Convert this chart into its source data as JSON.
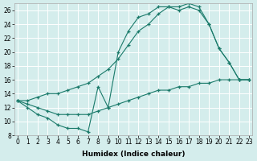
{
  "xlabel": "Humidex (Indice chaleur)",
  "bg_color": "#d4edec",
  "grid_color": "#ffffff",
  "line_color": "#1a7a6a",
  "xlim": [
    -0.3,
    23.3
  ],
  "ylim": [
    8,
    27
  ],
  "xticks": [
    0,
    1,
    2,
    3,
    4,
    5,
    6,
    7,
    8,
    9,
    10,
    11,
    12,
    13,
    14,
    15,
    16,
    17,
    18,
    19,
    20,
    21,
    22,
    23
  ],
  "yticks": [
    8,
    10,
    12,
    14,
    16,
    18,
    20,
    22,
    24,
    26
  ],
  "series": [
    {
      "x": [
        0,
        1,
        2,
        3,
        4,
        5,
        6,
        7,
        8,
        9,
        10,
        11,
        12,
        13,
        14,
        15,
        16,
        17,
        18,
        19,
        20,
        21,
        22,
        23
      ],
      "y": [
        13,
        12.5,
        12,
        11.5,
        11,
        11,
        11,
        11,
        11.5,
        12,
        12.5,
        13,
        13.5,
        14,
        14.5,
        14.5,
        15,
        15,
        15.5,
        15.5,
        16,
        16,
        16,
        16
      ]
    },
    {
      "x": [
        0,
        1,
        2,
        3,
        4,
        5,
        6,
        7,
        8,
        9,
        10,
        11,
        12,
        13,
        14,
        15,
        16,
        17,
        18,
        19,
        20,
        21,
        22,
        23
      ],
      "y": [
        13,
        12,
        11,
        10.5,
        9.5,
        9,
        9,
        8.5,
        15,
        12,
        20,
        23,
        25,
        25.5,
        26.5,
        26.5,
        26,
        26.5,
        26,
        24,
        20.5,
        18.5,
        16,
        16
      ]
    },
    {
      "x": [
        0,
        1,
        2,
        3,
        4,
        5,
        6,
        7,
        8,
        9,
        10,
        11,
        12,
        13,
        14,
        15,
        16,
        17,
        18,
        19,
        20,
        21,
        22,
        23
      ],
      "y": [
        13,
        13,
        13.5,
        14,
        14,
        14.5,
        15,
        15.5,
        16.5,
        17.5,
        19,
        21,
        23,
        24,
        25.5,
        26.5,
        26.5,
        27,
        26.5,
        24,
        20.5,
        18.5,
        16,
        16
      ]
    }
  ]
}
